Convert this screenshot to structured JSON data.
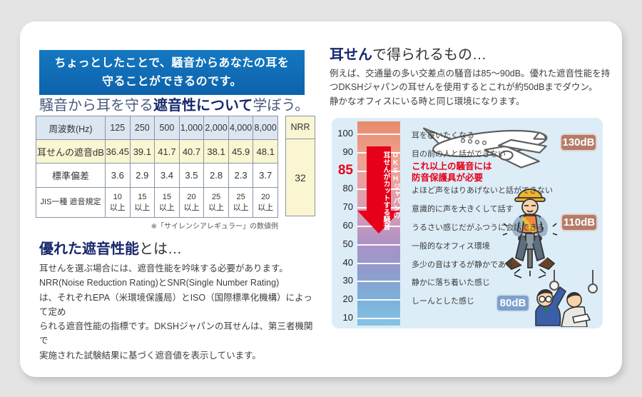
{
  "colors": {
    "banner_blue": "#1173b8",
    "navy": "#17276e",
    "accent_red": "#e60019",
    "cream": "#faf6d2",
    "header_row_blue": "#dce6f1",
    "panel_blue": "#ddedf8",
    "badge_brown": "#b57b69",
    "badge_blue": "#7fa0cb"
  },
  "left": {
    "banner_line1": "ちょっとしたことで、騒音からあなたの耳を",
    "banner_line2": "守ることができるのです。",
    "subheading": {
      "pre": "騒音から耳を守る",
      "em": "遮音性について",
      "post": "学ぼう。"
    },
    "table": {
      "freq_label": "周波数(Hz)",
      "freqs": [
        "125",
        "250",
        "500",
        "1,000",
        "2,000",
        "4,000",
        "8,000"
      ],
      "rows": [
        {
          "label": "耳せんの遮音dB",
          "values": [
            "36.45",
            "39.1",
            "41.7",
            "40.7",
            "38.1",
            "45.9",
            "48.1"
          ]
        },
        {
          "label": "標準偏差",
          "values": [
            "3.6",
            "2.9",
            "3.4",
            "3.5",
            "2.8",
            "2.3",
            "3.7"
          ]
        },
        {
          "label": "JIS一種 遮音規定",
          "values": [
            "10\n以上",
            "15\n以上",
            "15\n以上",
            "20\n以上",
            "25\n以上",
            "25\n以上",
            "20\n以上"
          ]
        }
      ],
      "nrr_label": "NRR",
      "nrr_value": "32"
    },
    "footnote": "※「サイレンシアレギュラー」の数値例",
    "heading2": {
      "em": "優れた遮音性能",
      "post": "とは…"
    },
    "paragraph": "耳せんを選ぶ場合には、遮音性能を吟味する必要があります。\nNRR(Noise Reduction Rating)とSNR(Single Number Rating)\nは、それぞれEPA（米環境保護局）とISO（国際標準化機構）によって定め\nられる遮音性能の指標です。DKSHジャパンの耳せんは、第三者機関で\n実施された試験結果に基づく遮音値を表示しています。"
  },
  "right": {
    "heading": {
      "em": "耳せん",
      "post": "で得られるもの…"
    },
    "paragraph": "例えば、交通量の多い交差点の騒音は85～90dB。優れた遮音性能を持\nつDKSHジャパンの耳せんを使用するとこれが約50dBまでダウン。\n静かなオフィスにいる時と同じ環境になります。",
    "chart": {
      "unit": "dB",
      "scale": [
        {
          "db": "100",
          "desc": "耳を覆いたくなる"
        },
        {
          "db": "90",
          "desc": "目の前の人と話ができない"
        },
        {
          "db": "85",
          "desc": "これ以上の騒音には\n防音保護具が必要",
          "emphasis": true
        },
        {
          "db": "80",
          "desc": "よほど声をはりあげないと話ができない"
        },
        {
          "db": "70",
          "desc": "意識的に声を大きくして話す"
        },
        {
          "db": "60",
          "desc": "うるさい感じだがふつうに会話できる"
        },
        {
          "db": "50",
          "desc": "一般的なオフィス環境"
        },
        {
          "db": "40",
          "desc": "多少の音はするが静かである"
        },
        {
          "db": "30",
          "desc": "静かに落ち着いた感じ"
        },
        {
          "db": "20",
          "desc": "しーんとした感じ"
        },
        {
          "db": "10",
          "desc": ""
        }
      ],
      "arrow_text": "DKSHジャパンの\n耳せんがカットする騒音",
      "badges": {
        "airplane": "130dB",
        "jackhammer": "110dB",
        "train": "80dB"
      }
    }
  }
}
